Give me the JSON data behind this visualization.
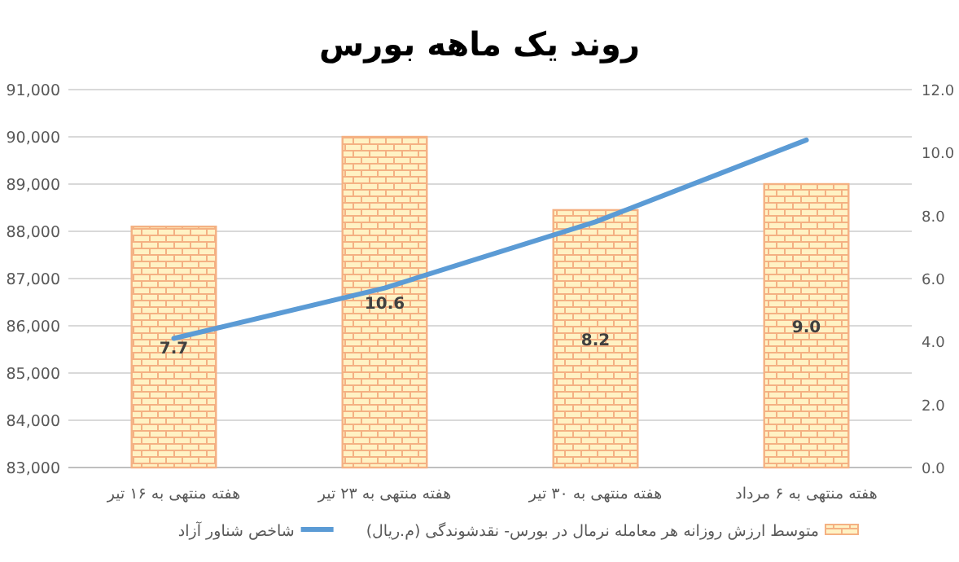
{
  "chart_data": {
    "type": "bar",
    "title": "روند یک ماهه بورس",
    "categories": [
      "هفته منتهی به ۱۶ تیر",
      "هفته منتهی به ۲۳ تیر",
      "هفته منتهی به ۳۰ تیر",
      "هفته منتهی به ۶ مرداد"
    ],
    "series": [
      {
        "name": "متوسط ارزش روزانه هر معامله نرمال در بورس- نقدشوندگی (م.ریال)",
        "type": "bar",
        "color": "#f4b183",
        "values": [
          88100,
          90000,
          88450,
          89000
        ]
      },
      {
        "name": "شاخص شناور آزاد",
        "type": "line",
        "axis": "y2",
        "color": "#5b9bd5",
        "values": [
          4.1,
          5.7,
          7.8,
          10.4
        ]
      }
    ],
    "ylim": [
      83000,
      91000
    ],
    "yticks": [
      {
        "value": 83000,
        "label": "83,000"
      },
      {
        "value": 84000,
        "label": "84,000"
      },
      {
        "value": 85000,
        "label": "85,000"
      },
      {
        "value": 86000,
        "label": "86,000"
      },
      {
        "value": 87000,
        "label": "87,000"
      },
      {
        "value": 88000,
        "label": "88,000"
      },
      {
        "value": 89000,
        "label": "89,000"
      },
      {
        "value": 90000,
        "label": "90,000"
      },
      {
        "value": 91000,
        "label": "91,000"
      }
    ],
    "y2lim": [
      0,
      12
    ],
    "y2ticks": [
      {
        "value": 0,
        "label": "0.0"
      },
      {
        "value": 2,
        "label": "2.0"
      },
      {
        "value": 4,
        "label": "4.0"
      },
      {
        "value": 6,
        "label": "6.0"
      },
      {
        "value": 8,
        "label": "8.0"
      },
      {
        "value": 10,
        "label": "10.0"
      },
      {
        "value": 12,
        "label": "12.0"
      }
    ],
    "annotations": [
      "7.7",
      "10.6",
      "8.2",
      "9.0"
    ],
    "grid": "y",
    "legend": "bottom",
    "marker": "none",
    "line_style": "solid"
  }
}
